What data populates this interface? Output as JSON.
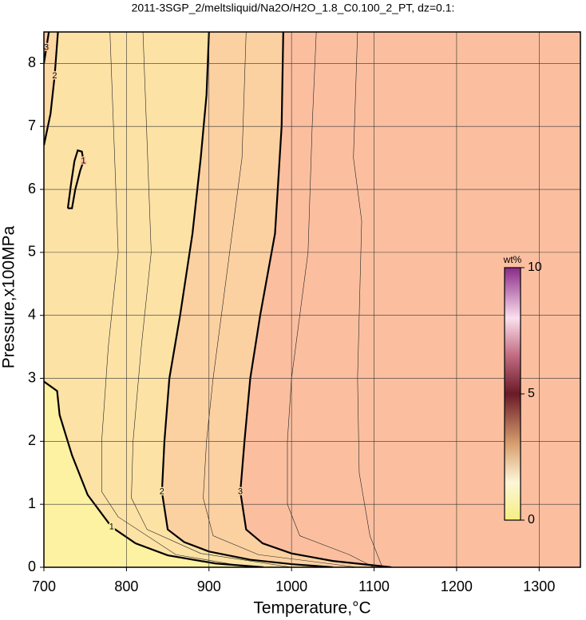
{
  "chart_data": {
    "type": "contour",
    "title": "2011-3SGP_2/meltsliquid/Na2O/H2O_1.8_C0.100_2_PT, dz=0.1:",
    "xlabel": "Temperature,°C",
    "ylabel": "Pressure,x100MPa",
    "xlim": [
      700,
      1350
    ],
    "ylim": [
      0,
      8.5
    ],
    "xticks": [
      700,
      800,
      900,
      1000,
      1100,
      1200,
      1300
    ],
    "yticks": [
      0,
      1,
      2,
      3,
      4,
      5,
      6,
      7,
      8
    ],
    "grid": true,
    "background": "#fbbfa0",
    "contours": [
      {
        "level": 3,
        "fill": "#fcd1a2",
        "x": [
          990,
          988,
          980,
          962,
          950,
          943,
          938,
          945,
          965,
          1000,
          1050,
          1100,
          1121
        ],
        "y": [
          8.5,
          7,
          5.3,
          4,
          3,
          2,
          1.2,
          0.6,
          0.38,
          0.22,
          0.1,
          0.03,
          0
        ]
      },
      {
        "level": 2,
        "fill": "#fde2a6",
        "x": [
          900,
          897,
          890,
          880,
          865,
          852,
          846,
          843,
          850,
          870,
          900,
          950,
          1000,
          1050
        ],
        "y": [
          8.5,
          7.5,
          6.5,
          5.3,
          4,
          3,
          2,
          1.2,
          0.6,
          0.4,
          0.25,
          0.12,
          0.05,
          0
        ]
      },
      {
        "level": 2,
        "fill": "#fdd8a2",
        "x": [
          700,
          708,
          713,
          717
        ],
        "y": [
          6.7,
          7.2,
          7.8,
          8.5
        ]
      },
      {
        "level": 3,
        "fill": "#fccb9e",
        "x": [
          700,
          703,
          706
        ],
        "y": [
          8.0,
          8.25,
          8.5
        ]
      },
      {
        "level": 1,
        "fill": "#fdf2a2",
        "x": [
          700,
          716,
          719,
          734,
          753,
          782,
          811,
          850,
          908,
          966
        ],
        "y": [
          2.95,
          2.8,
          2.42,
          1.78,
          1.15,
          0.64,
          0.38,
          0.19,
          0.06,
          0
        ]
      },
      {
        "level": 1,
        "x": [
          729,
          733,
          737,
          741,
          746,
          748,
          744,
          738,
          734,
          729
        ],
        "y": [
          5.7,
          6.1,
          6.45,
          6.62,
          6.6,
          6.45,
          6.3,
          6.0,
          5.7,
          5.7
        ]
      }
    ],
    "minor_contours": [
      {
        "x": [
          780,
          790,
          778,
          770,
          770,
          790,
          860,
          950
        ],
        "y": [
          8.5,
          5,
          3.5,
          2,
          1.2,
          0.8,
          0.2,
          0
        ]
      },
      {
        "x": [
          820,
          830,
          818,
          808,
          806,
          825,
          890,
          1000
        ],
        "y": [
          8.5,
          5,
          3.5,
          2,
          1.1,
          0.6,
          0.22,
          0
        ]
      },
      {
        "x": [
          945,
          940,
          925,
          905,
          897,
          893,
          905,
          960,
          1080
        ],
        "y": [
          8.5,
          6.5,
          5,
          3,
          2,
          1.1,
          0.5,
          0.2,
          0
        ]
      },
      {
        "x": [
          1030,
          1025,
          1020,
          1000,
          995,
          995,
          1010,
          1070,
          1100
        ],
        "y": [
          8.5,
          7,
          5,
          3,
          2,
          1,
          0.5,
          0.2,
          0
        ]
      },
      {
        "x": [
          1080,
          1075,
          1085,
          1080,
          1082,
          1095,
          1110
        ],
        "y": [
          8.5,
          6.5,
          5.5,
          3,
          1.5,
          0.5,
          0
        ]
      }
    ],
    "colorbar": {
      "label": "wt%",
      "lim": [
        0,
        10
      ],
      "ticks": [
        0,
        5,
        10
      ],
      "colormap": [
        {
          "value": 0,
          "color": "#f5ee80"
        },
        {
          "value": 1.5,
          "color": "#fdf6d8"
        },
        {
          "value": 3,
          "color": "#d8a070"
        },
        {
          "value": 5,
          "color": "#6a1a28"
        },
        {
          "value": 6.5,
          "color": "#c06a80"
        },
        {
          "value": 8,
          "color": "#fbe0ee"
        },
        {
          "value": 10,
          "color": "#8a2a88"
        }
      ]
    }
  }
}
